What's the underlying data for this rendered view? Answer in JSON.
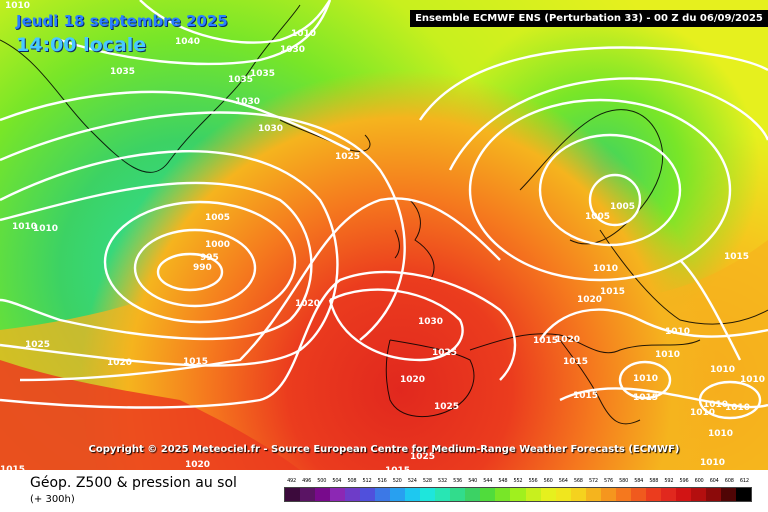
{
  "header": {
    "date": "Jeudi 18 septembre 2025",
    "time": "14:00 locale",
    "run": "Ensemble ECMWF ENS  (Perturbation 33)  -  00 Z du 06/09/2025"
  },
  "map": {
    "copyright": "Copyright © 2025 Meteociel.fr - Source European Centre for Medium-Range Weather Forecasts (ECMWF)",
    "pressure_labels": [
      {
        "id": "iso-1010-a",
        "text": "1010"
      },
      {
        "id": "iso-1040",
        "text": "1040"
      },
      {
        "id": "iso-1030-a",
        "text": "1030"
      },
      {
        "id": "iso-1010-b",
        "text": "1010"
      },
      {
        "id": "iso-1035-a",
        "text": "1035"
      },
      {
        "id": "iso-1035-b",
        "text": "1035"
      },
      {
        "id": "iso-1035-c",
        "text": "1035"
      },
      {
        "id": "iso-1030-b",
        "text": "1030"
      },
      {
        "id": "iso-1030-c",
        "text": "1030"
      },
      {
        "id": "iso-1025-a",
        "text": "1025"
      },
      {
        "id": "iso-1005-a",
        "text": "1005"
      },
      {
        "id": "iso-1000",
        "text": "1000"
      },
      {
        "id": "iso-995",
        "text": "995"
      },
      {
        "id": "iso-990",
        "text": "990"
      },
      {
        "id": "iso-1010-c",
        "text": "1010"
      },
      {
        "id": "iso-1010-d",
        "text": "1010"
      },
      {
        "id": "iso-1020-a",
        "text": "1020"
      },
      {
        "id": "iso-1025-b",
        "text": "1025"
      },
      {
        "id": "iso-1020-b",
        "text": "1020"
      },
      {
        "id": "iso-1015-a",
        "text": "1015"
      },
      {
        "id": "iso-1030-d",
        "text": "1030"
      },
      {
        "id": "iso-1025-c",
        "text": "1025"
      },
      {
        "id": "iso-1020-c",
        "text": "1020"
      },
      {
        "id": "iso-1025-d",
        "text": "1025"
      },
      {
        "id": "iso-1020-d",
        "text": "1020"
      },
      {
        "id": "iso-1015-b",
        "text": "1015"
      },
      {
        "id": "iso-1025-e",
        "text": "1025"
      },
      {
        "id": "iso-1005-b",
        "text": "1005"
      },
      {
        "id": "iso-1005-c",
        "text": "1005"
      },
      {
        "id": "iso-1010-e",
        "text": "1010"
      },
      {
        "id": "iso-1015-c",
        "text": "1015"
      },
      {
        "id": "iso-1020-e",
        "text": "1020"
      },
      {
        "id": "iso-1015-d",
        "text": "1015"
      },
      {
        "id": "iso-1020-f",
        "text": "1020"
      },
      {
        "id": "iso-1015-e",
        "text": "1015"
      },
      {
        "id": "iso-1015-f",
        "text": "1015"
      },
      {
        "id": "iso-1010-f",
        "text": "1010"
      },
      {
        "id": "iso-1010-g",
        "text": "1010"
      },
      {
        "id": "iso-1010-h",
        "text": "1010"
      },
      {
        "id": "iso-1010-i",
        "text": "1010"
      },
      {
        "id": "iso-1010-j",
        "text": "1010"
      },
      {
        "id": "iso-1015-g",
        "text": "1015"
      },
      {
        "id": "iso-1015-h",
        "text": "1015"
      },
      {
        "id": "iso-1010-k",
        "text": "1010"
      },
      {
        "id": "iso-1010-l",
        "text": "1010"
      },
      {
        "id": "iso-1010-m",
        "text": "1010"
      },
      {
        "id": "iso-1010-n",
        "text": "1010"
      },
      {
        "id": "iso-1010-o",
        "text": "1010"
      },
      {
        "id": "iso-1015-i",
        "text": "1015"
      }
    ]
  },
  "footer": {
    "title": "Géop. Z500 & pression au sol",
    "subtitle": "(+ 300h)",
    "scale": {
      "labels": [
        "492",
        "496",
        "500",
        "504",
        "508",
        "512",
        "516",
        "520",
        "524",
        "528",
        "532",
        "536",
        "540",
        "544",
        "548",
        "552",
        "556",
        "560",
        "564",
        "568",
        "572",
        "576",
        "580",
        "584",
        "588",
        "592",
        "596",
        "600",
        "604",
        "608",
        "612"
      ],
      "colors": [
        "#3c0a3c",
        "#5a1464",
        "#780a8c",
        "#8c28b4",
        "#6e3cc8",
        "#5050dc",
        "#3c78e6",
        "#28a0f0",
        "#1ec8f0",
        "#1ee6dc",
        "#28e6b4",
        "#32dc8c",
        "#3cd264",
        "#50dc3c",
        "#78e628",
        "#a0f01e",
        "#c8f01e",
        "#e6f01e",
        "#f0e61e",
        "#f5d21e",
        "#f5b41e",
        "#f5961e",
        "#f5781e",
        "#f05a1e",
        "#eb3c1e",
        "#e1281e",
        "#d21414",
        "#b40f0f",
        "#8c0a0a",
        "#500505",
        "#000000"
      ]
    }
  }
}
